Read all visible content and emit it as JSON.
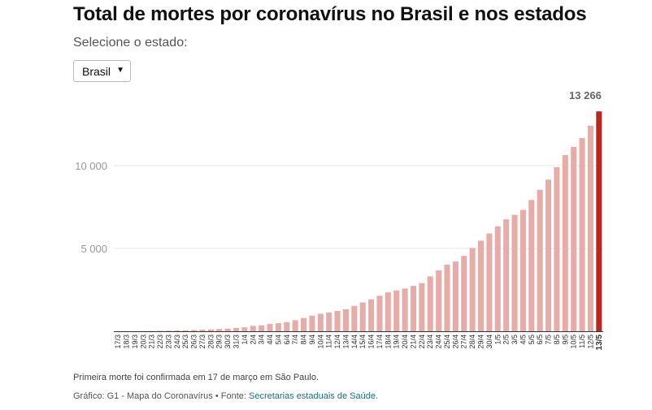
{
  "title": "Total de mortes por coronavírus no Brasil e nos estados",
  "selector": {
    "label": "Selecione o estado:",
    "value": "Brasil"
  },
  "footer": {
    "note": "Primeira morte foi confirmada em 17 de março em São Paulo.",
    "credits_prefix": "Gráfico: G1 - Mapa do Coronavírus • Fonte: ",
    "credits_link": "Secretarias estaduais de Saúde",
    "credits_suffix": "."
  },
  "colors": {
    "bar": "#e8aca8",
    "highlight": "#c0251c",
    "grid": "#e6e6e6",
    "axis": "#333333"
  },
  "chart_data": {
    "type": "bar",
    "categories": [
      "17/3",
      "18/3",
      "19/3",
      "20/3",
      "21/3",
      "22/3",
      "23/3",
      "24/3",
      "25/3",
      "26/3",
      "27/3",
      "28/3",
      "29/3",
      "30/3",
      "31/3",
      "1/4",
      "2/4",
      "3/4",
      "4/4",
      "5/4",
      "6/4",
      "7/4",
      "8/4",
      "9/4",
      "10/4",
      "11/4",
      "12/4",
      "13/4",
      "14/4",
      "15/4",
      "16/4",
      "17/4",
      "18/4",
      "19/4",
      "20/4",
      "21/4",
      "22/4",
      "23/4",
      "24/4",
      "25/4",
      "26/4",
      "27/4",
      "28/4",
      "29/4",
      "30/4",
      "1/5",
      "2/5",
      "3/5",
      "4/5",
      "5/5",
      "6/5",
      "7/5",
      "8/5",
      "9/5",
      "10/5",
      "11/5",
      "12/5",
      "13/5"
    ],
    "values": [
      1,
      3,
      6,
      11,
      18,
      25,
      34,
      46,
      57,
      77,
      92,
      111,
      136,
      159,
      201,
      240,
      324,
      359,
      445,
      486,
      553,
      667,
      800,
      941,
      1056,
      1124,
      1223,
      1328,
      1532,
      1736,
      1924,
      2141,
      2347,
      2462,
      2575,
      2741,
      2906,
      3313,
      3670,
      4016,
      4205,
      4543,
      5017,
      5466,
      5901,
      6329,
      6750,
      7025,
      7321,
      7921,
      8536,
      9146,
      9897,
      10627,
      11123,
      11653,
      12400,
      13266
    ],
    "highlight_index": 57,
    "highlight_label": "13 266",
    "yticks": [
      5000,
      10000
    ],
    "ytick_labels": [
      "5 000",
      "10 000"
    ],
    "ylim": [
      0,
      14500
    ],
    "grid": true
  }
}
